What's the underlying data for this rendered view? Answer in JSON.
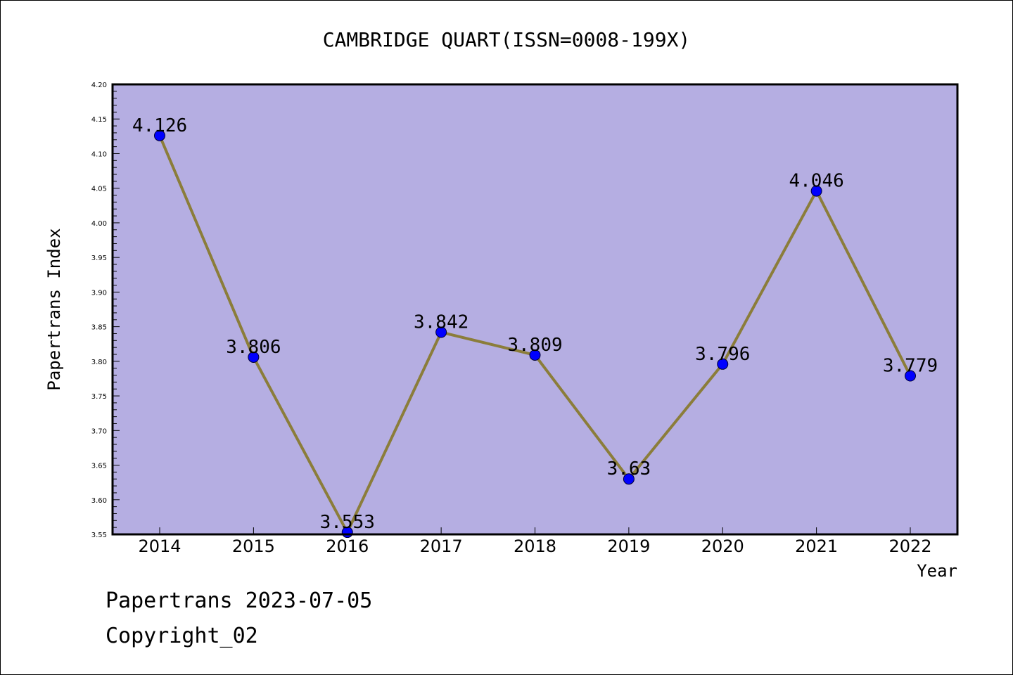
{
  "chart_data": {
    "type": "line",
    "title": "CAMBRIDGE QUART(ISSN=0008-199X)",
    "xlabel": "Year",
    "ylabel": "Papertrans Index",
    "categories": [
      "2014",
      "2015",
      "2016",
      "2017",
      "2018",
      "2019",
      "2020",
      "2021",
      "2022"
    ],
    "values": [
      4.126,
      3.806,
      3.553,
      3.842,
      3.809,
      3.63,
      3.796,
      4.046,
      3.779
    ],
    "data_labels": [
      "4.126",
      "3.806",
      "3.553",
      "3.842",
      "3.809",
      "3.63",
      "3.796",
      "4.046",
      "3.779"
    ],
    "ylim": [
      3.55,
      4.2
    ],
    "yticks": [
      "3.55",
      "3.60",
      "3.65",
      "3.70",
      "3.75",
      "3.80",
      "3.85",
      "3.90",
      "3.95",
      "4.00",
      "4.05",
      "4.10",
      "4.15",
      "4.20"
    ],
    "grid": false,
    "colors": {
      "plot_background": "#b5aee2",
      "line": "#8b7d3a",
      "marker": "#0000ff"
    }
  },
  "footer": {
    "line1": "Papertrans 2023-07-05",
    "line2": "Copyright_02"
  }
}
